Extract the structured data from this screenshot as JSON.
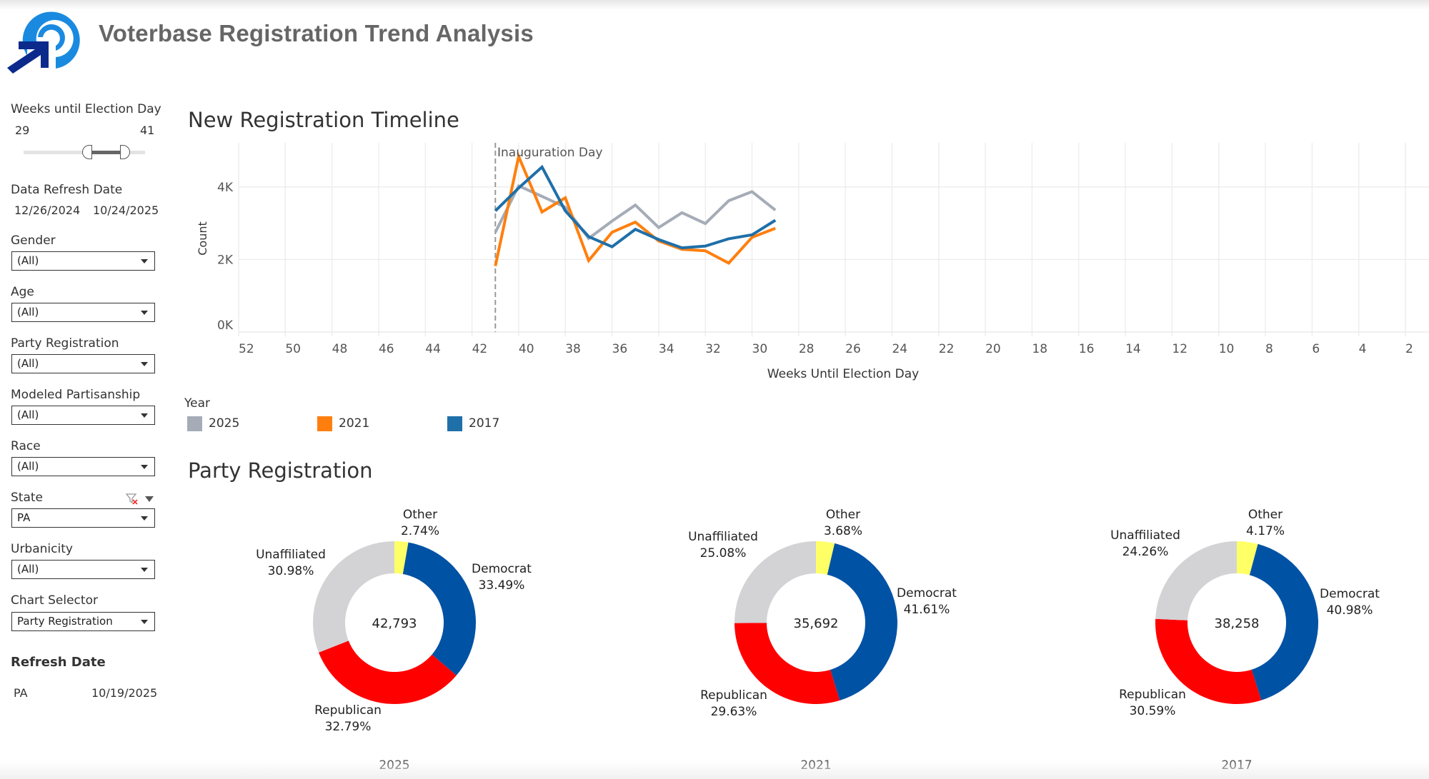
{
  "header": {
    "title": "Voterbase Registration Trend Analysis",
    "logo_icon": "target-arrow-logo-icon"
  },
  "sidebar": {
    "weeks_slider": {
      "label": "Weeks until Election Day",
      "min_label": "29",
      "max_label": "41",
      "selected_min": 29,
      "selected_max": 41
    },
    "data_refresh": {
      "label": "Data Refresh Date",
      "start": "12/26/2024",
      "end": "10/24/2025"
    },
    "filters": [
      {
        "label": "Gender",
        "value": "(All)"
      },
      {
        "label": "Age",
        "value": "(All)"
      },
      {
        "label": "Party Registration",
        "value": "(All)"
      },
      {
        "label": "Modeled Partisanship",
        "value": "(All)"
      },
      {
        "label": "Race",
        "value": "(All)"
      },
      {
        "label": "State",
        "value": "PA"
      },
      {
        "label": "Urbanicity",
        "value": "(All)"
      },
      {
        "label": "Chart Selector",
        "value": "Party Registration"
      }
    ],
    "state_filter_icons": [
      "clear-filter-icon",
      "dropdown-menu-icon"
    ],
    "refresh_table": {
      "title": "Refresh Date",
      "rows": [
        {
          "state": "PA",
          "date": "10/19/2025"
        }
      ]
    }
  },
  "colors": {
    "2025": "#a5acb7",
    "2021": "#ff7f0e",
    "2017": "#1f6fa8",
    "democrat": "#0052a5",
    "republican": "#ff0000",
    "unaffiliated": "#d3d3d5",
    "other": "#ffff66"
  },
  "chart_data": [
    {
      "type": "line",
      "title": "New Registration Timeline",
      "xlabel": "Weeks Until Election Day",
      "ylabel": "Count",
      "x_reversed": true,
      "xlim": [
        52,
        1
      ],
      "ylim": [
        0,
        5000
      ],
      "x_ticks": [
        52,
        50,
        48,
        46,
        44,
        42,
        40,
        38,
        36,
        34,
        32,
        30,
        28,
        26,
        24,
        22,
        20,
        18,
        16,
        14,
        12,
        10,
        8,
        6,
        4,
        2
      ],
      "y_ticks": [
        {
          "value": 0,
          "label": "0K"
        },
        {
          "value": 2000,
          "label": "2K"
        },
        {
          "value": 4000,
          "label": "4K"
        }
      ],
      "grid": true,
      "annotation": {
        "x": 41,
        "label": "Inauguration Day",
        "style": "dashed-vertical"
      },
      "legend": {
        "title": "Year",
        "placement": "bottom-left"
      },
      "x": [
        41,
        40,
        39,
        38,
        37,
        36,
        35,
        34,
        33,
        32,
        31,
        30,
        29
      ],
      "series": [
        {
          "name": "2025",
          "values": [
            2750,
            4030,
            3740,
            3440,
            2580,
            3060,
            3500,
            2880,
            3290,
            2990,
            3620,
            3870,
            3360
          ]
        },
        {
          "name": "2021",
          "values": [
            1820,
            4840,
            3310,
            3700,
            1970,
            2750,
            3030,
            2510,
            2280,
            2240,
            1900,
            2610,
            2860
          ]
        },
        {
          "name": "2017",
          "values": [
            3340,
            3970,
            4550,
            3340,
            2630,
            2350,
            2830,
            2550,
            2320,
            2370,
            2570,
            2680,
            3080
          ]
        }
      ]
    },
    {
      "type": "pie",
      "title": "Party Registration",
      "donut": true,
      "charts": [
        {
          "year": "2025",
          "total": "42,793",
          "slices": [
            {
              "name": "Other",
              "value": 2.74,
              "label": "2.74%"
            },
            {
              "name": "Democrat",
              "value": 33.49,
              "label": "33.49%"
            },
            {
              "name": "Republican",
              "value": 32.79,
              "label": "32.79%"
            },
            {
              "name": "Unaffiliated",
              "value": 30.98,
              "label": "30.98%"
            }
          ]
        },
        {
          "year": "2021",
          "total": "35,692",
          "slices": [
            {
              "name": "Other",
              "value": 3.68,
              "label": "3.68%"
            },
            {
              "name": "Democrat",
              "value": 41.61,
              "label": "41.61%"
            },
            {
              "name": "Republican",
              "value": 29.63,
              "label": "29.63%"
            },
            {
              "name": "Unaffiliated",
              "value": 25.08,
              "label": "25.08%"
            }
          ]
        },
        {
          "year": "2017",
          "total": "38,258",
          "slices": [
            {
              "name": "Other",
              "value": 4.17,
              "label": "4.17%"
            },
            {
              "name": "Democrat",
              "value": 40.98,
              "label": "40.98%"
            },
            {
              "name": "Republican",
              "value": 30.59,
              "label": "30.59%"
            },
            {
              "name": "Unaffiliated",
              "value": 24.26,
              "label": "24.26%"
            }
          ]
        }
      ]
    }
  ]
}
